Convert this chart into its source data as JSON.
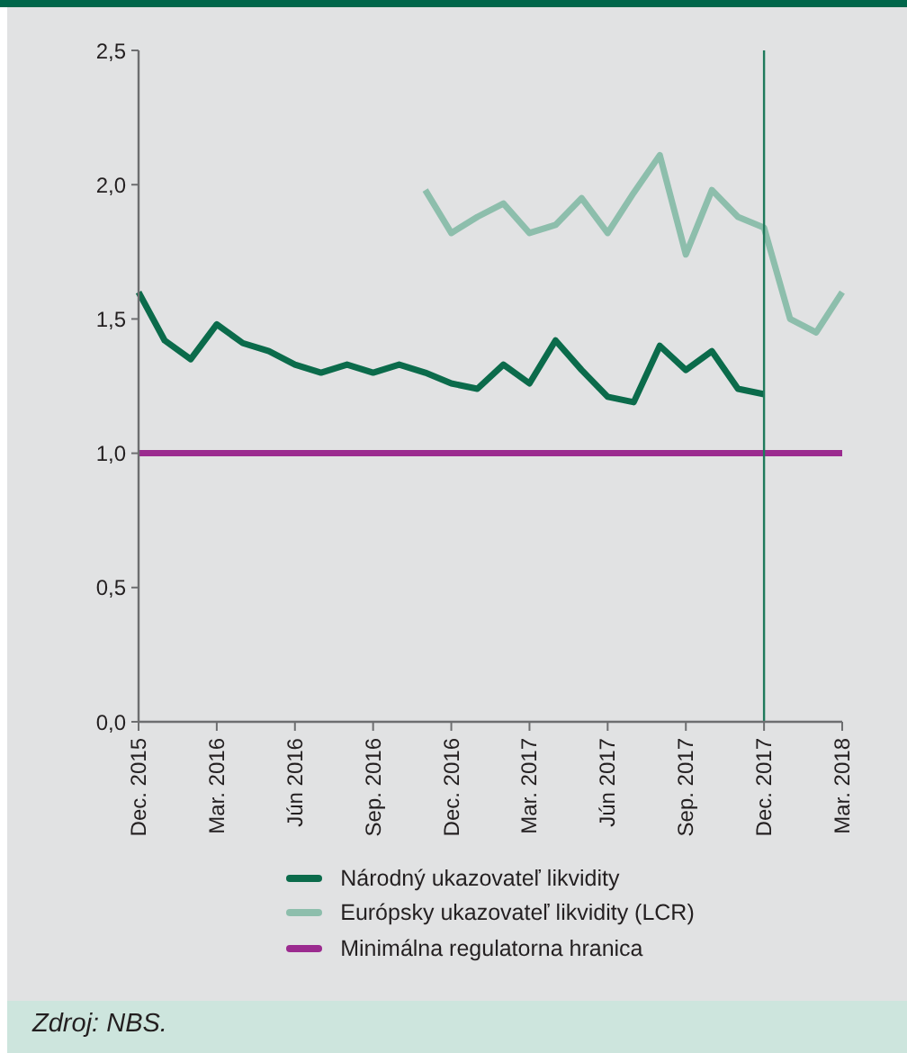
{
  "chart_data": {
    "type": "line",
    "categories": [
      "Dec. 2015",
      null,
      null,
      "Mar. 2016",
      null,
      null,
      "Jún 2016",
      null,
      null,
      "Sep. 2016",
      null,
      null,
      "Dec. 2016",
      null,
      null,
      "Mar. 2017",
      null,
      null,
      "Jún 2017",
      null,
      null,
      "Sep. 2017",
      null,
      null,
      "Dec. 2017",
      null,
      null,
      "Mar. 2018"
    ],
    "series": [
      {
        "name": "Národný ukazovateľ likvidity",
        "color": "#0b6b4b",
        "values": [
          1.6,
          1.42,
          1.35,
          1.48,
          1.41,
          1.38,
          1.33,
          1.3,
          1.33,
          1.3,
          1.33,
          1.3,
          1.26,
          1.24,
          1.33,
          1.26,
          1.42,
          1.31,
          1.21,
          1.19,
          1.4,
          1.31,
          1.38,
          1.24,
          1.22,
          null,
          null,
          null
        ]
      },
      {
        "name": "Európsky ukazovateľ likvidity (LCR)",
        "color": "#8dbeac",
        "values": [
          null,
          null,
          null,
          null,
          null,
          null,
          null,
          null,
          null,
          null,
          null,
          1.98,
          1.82,
          1.88,
          1.93,
          1.82,
          1.85,
          1.95,
          1.82,
          1.97,
          2.11,
          1.74,
          1.98,
          1.88,
          1.84,
          1.5,
          1.45,
          1.6
        ]
      },
      {
        "name": "Minimálna regulatorna hranica",
        "color": "#9b2b8f",
        "values": [
          1.0,
          1.0,
          1.0,
          1.0,
          1.0,
          1.0,
          1.0,
          1.0,
          1.0,
          1.0,
          1.0,
          1.0,
          1.0,
          1.0,
          1.0,
          1.0,
          1.0,
          1.0,
          1.0,
          1.0,
          1.0,
          1.0,
          1.0,
          1.0,
          1.0,
          1.0,
          1.0,
          1.0
        ]
      }
    ],
    "ylim": [
      0,
      2.5
    ],
    "yticks": [
      {
        "value": 0,
        "label": "0,0"
      },
      {
        "value": 0.5,
        "label": "0,5"
      },
      {
        "value": 1,
        "label": "1,0"
      },
      {
        "value": 1.5,
        "label": "1,5"
      },
      {
        "value": 2,
        "label": "2,0"
      },
      {
        "value": 2.5,
        "label": "2,5"
      }
    ],
    "ref_lines": [
      {
        "axis": "x",
        "value": "Dec. 2017",
        "color": "#1f7a5c"
      }
    ],
    "legend": "bottom",
    "annotations": [
      "Zdroj: NBS."
    ]
  }
}
